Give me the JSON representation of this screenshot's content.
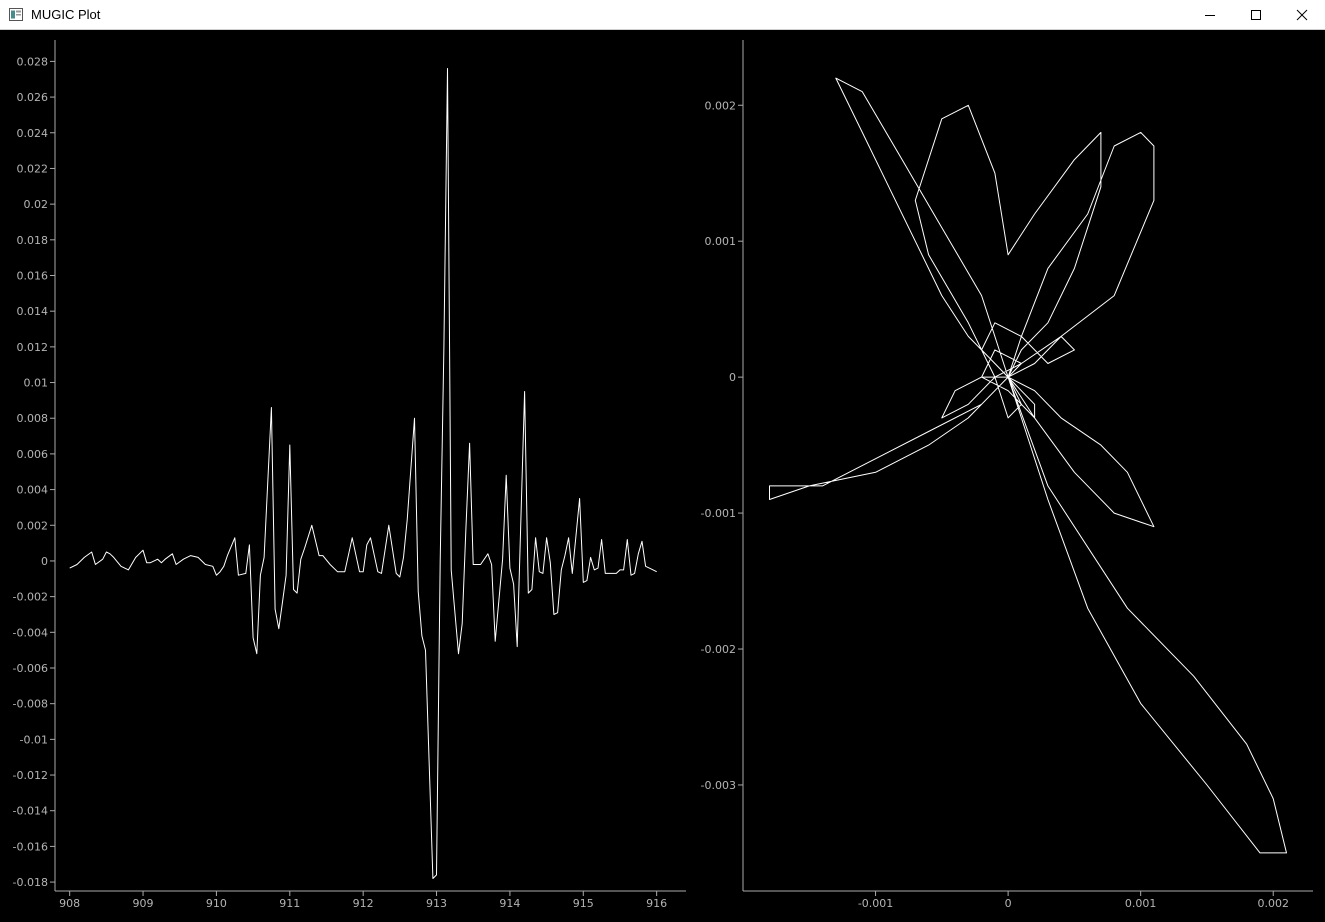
{
  "window": {
    "title": "MUGIC Plot",
    "icon": "app-window-icon",
    "controls": [
      "minimize-icon",
      "maximize-icon",
      "close-icon"
    ]
  },
  "colors": {
    "background": "#000000",
    "axis": "#aaaaaa",
    "trace": "#ffffff",
    "titlebar": "#ffffff"
  },
  "chart_data": [
    {
      "type": "line",
      "title": "",
      "xlabel": "",
      "ylabel": "",
      "xlim": [
        907.8,
        916.4
      ],
      "ylim": [
        -0.0185,
        0.0292
      ],
      "xticks": [
        "908",
        "909",
        "910",
        "911",
        "912",
        "913",
        "914",
        "915",
        "916"
      ],
      "yticks": [
        "0.028",
        "0.026",
        "0.024",
        "0.022",
        "0.02",
        "0.018",
        "0.016",
        "0.014",
        "0.012",
        "0.01",
        "0.008",
        "0.006",
        "0.004",
        "0.002",
        "0",
        "-0.002",
        "-0.004",
        "-0.006",
        "-0.008",
        "-0.01",
        "-0.012",
        "-0.014",
        "-0.016",
        "-0.018"
      ],
      "grid": false,
      "series": [
        {
          "x": [
            908.0,
            908.1,
            908.2,
            908.3,
            908.35,
            908.45,
            908.5,
            908.55,
            908.6,
            908.7,
            908.8,
            908.9,
            909.0,
            909.05,
            909.1,
            909.2,
            909.25,
            909.3,
            909.4,
            909.45,
            909.55,
            909.65,
            909.75,
            909.85,
            909.95,
            910.0,
            910.05,
            910.1,
            910.15,
            910.25,
            910.3,
            910.4,
            910.45,
            910.5,
            910.55,
            910.6,
            910.65,
            910.75,
            910.8,
            910.85,
            910.9,
            910.95,
            911.0,
            911.05,
            911.1,
            911.15,
            911.2,
            911.3,
            911.4,
            911.45,
            911.55,
            911.65,
            911.75,
            911.85,
            911.95,
            912.0,
            912.05,
            912.1,
            912.2,
            912.25,
            912.35,
            912.45,
            912.5,
            912.55,
            912.6,
            912.7,
            912.75,
            912.8,
            912.85,
            912.95,
            913.0,
            913.05,
            913.1,
            913.15,
            913.2,
            913.3,
            913.35,
            913.4,
            913.45,
            913.5,
            913.6,
            913.7,
            913.75,
            913.8,
            913.9,
            913.95,
            914.0,
            914.05,
            914.1,
            914.2,
            914.25,
            914.3,
            914.35,
            914.4,
            914.45,
            914.5,
            914.55,
            914.6,
            914.65,
            914.7,
            914.75,
            914.8,
            914.85,
            914.95,
            915.0,
            915.05,
            915.1,
            915.15,
            915.2,
            915.25,
            915.3,
            915.4,
            915.45,
            915.5,
            915.55,
            915.6,
            915.65,
            915.7,
            915.75,
            915.8,
            915.85,
            915.9,
            916.0
          ],
          "y": [
            -0.0004,
            -0.0002,
            0.0002,
            0.0005,
            -0.0002,
            0.0001,
            0.0005,
            0.0004,
            0.0002,
            -0.0003,
            -0.0005,
            0.0002,
            0.0006,
            -0.0001,
            -0.0001,
            0.0001,
            -0.0001,
            0.0001,
            0.0004,
            -0.0002,
            0.0001,
            0.0003,
            0.0002,
            -0.0002,
            -0.0003,
            -0.0008,
            -0.0006,
            -0.0003,
            0.0003,
            0.0013,
            -0.0008,
            -0.0007,
            0.0009,
            -0.0043,
            -0.0052,
            -0.0008,
            0.0002,
            0.0086,
            -0.0027,
            -0.0038,
            -0.0023,
            -0.0008,
            0.0065,
            -0.0016,
            -0.0018,
            0.0001,
            0.0007,
            0.002,
            0.0003,
            0.0003,
            -0.0002,
            -0.0006,
            -0.0006,
            0.0013,
            -0.0006,
            -0.0006,
            0.0009,
            0.0013,
            -0.0006,
            -0.0007,
            0.002,
            -0.0007,
            -0.0009,
            0.0002,
            0.0023,
            0.008,
            -0.0017,
            -0.0042,
            -0.005,
            -0.0178,
            -0.0176,
            0.0,
            0.012,
            0.0276,
            -0.0005,
            -0.0052,
            -0.0035,
            0.0018,
            0.0066,
            -0.0002,
            -0.0002,
            0.0004,
            -0.0002,
            -0.0045,
            0.0001,
            0.0048,
            -0.0004,
            -0.0013,
            -0.0048,
            0.0095,
            -0.0018,
            -0.0016,
            0.0013,
            -0.0006,
            -0.0007,
            0.0013,
            -0.0001,
            -0.003,
            -0.0029,
            -0.0005,
            0.0003,
            0.0013,
            -0.0007,
            0.0035,
            -0.0012,
            -0.0011,
            0.0002,
            -0.0005,
            -0.0004,
            0.0012,
            -0.0007,
            -0.0007,
            -0.0007,
            -0.0005,
            -0.0005,
            0.0012,
            -0.0008,
            -0.0007,
            0.0004,
            0.0011,
            -0.0003,
            -0.0004,
            -0.0006
          ],
          "color": "#ffffff"
        }
      ]
    },
    {
      "type": "line",
      "title": "",
      "xlabel": "",
      "ylabel": "",
      "xlim": [
        -0.002,
        0.0023
      ],
      "ylim": [
        -0.00378,
        0.00248
      ],
      "xticks": [
        "-0.001",
        "0",
        "0.001",
        "0.002"
      ],
      "yticks": [
        "0.002",
        "0.001",
        "0",
        "-0.001",
        "-0.002",
        "-0.003"
      ],
      "grid": false,
      "series": [
        {
          "x": [
            0,
            -0.0002,
            -0.0005,
            -0.0008,
            -0.0011,
            -0.0013,
            -0.0011,
            -0.0009,
            -0.0007,
            -0.0005,
            -0.0003,
            -0.0001,
            0.0,
            0.0001,
            0.0,
            -0.0001,
            -0.0003,
            -0.0006,
            -0.0007,
            -0.0005,
            -0.0003,
            -0.0001,
            0.0,
            0.0002,
            0.0005,
            0.0007,
            0.0007,
            0.0005,
            0.0003,
            0.0001,
            0.0,
            0.0001,
            0.0003,
            0.0006,
            0.0008,
            0.001,
            0.0011,
            0.0011,
            0.0008,
            0.0004,
            0.0001,
            -0.0001,
            -0.0003,
            -0.0005,
            -0.0004,
            -0.0002,
            0.0,
            -0.0002,
            -0.0006,
            -0.001,
            -0.0014,
            -0.0018,
            -0.0018,
            -0.0015,
            -0.001,
            -0.0006,
            -0.0003,
            -0.0001,
            0.0,
            0.0002,
            0.0004,
            0.0007,
            0.0009,
            0.0011,
            0.0008,
            0.0005,
            0.0002,
            0.0,
            0.0003,
            0.0009,
            0.0014,
            0.0018,
            0.002,
            0.0021,
            0.0019,
            0.0015,
            0.001,
            0.0006,
            0.0003,
            0.0001,
            0.0,
            -0.0002,
            -0.0001,
            0.0001,
            0.0003,
            0.0005,
            0.0004,
            0.0002,
            0.0,
            0.0002,
            0.0002,
            0.0,
            -0.0002,
            -0.0001,
            0.0001,
            0.0,
            0.0002,
            0.0
          ],
          "y": [
            0,
            0.0006,
            0.0011,
            0.0016,
            0.0021,
            0.0022,
            0.0018,
            0.0014,
            0.001,
            0.0006,
            0.0003,
            0.0001,
            0.0,
            -0.0002,
            -0.0003,
            0.0,
            0.0004,
            0.0009,
            0.0013,
            0.0019,
            0.002,
            0.0015,
            0.0009,
            0.0012,
            0.0016,
            0.0018,
            0.0014,
            0.0008,
            0.0004,
            0.0002,
            0.0,
            0.0003,
            0.0008,
            0.0012,
            0.0017,
            0.0018,
            0.0017,
            0.0013,
            0.0006,
            0.0003,
            0.0001,
            0.0,
            -0.0002,
            -0.0003,
            -0.0001,
            0.0,
            0.0,
            -0.0002,
            -0.0004,
            -0.0006,
            -0.0008,
            -0.0008,
            -0.0009,
            -0.0008,
            -0.0007,
            -0.0005,
            -0.0003,
            -0.0001,
            0.0,
            -0.0001,
            -0.0003,
            -0.0005,
            -0.0007,
            -0.0011,
            -0.001,
            -0.0007,
            -0.0003,
            0.0,
            -0.0008,
            -0.0017,
            -0.0022,
            -0.0027,
            -0.0031,
            -0.0035,
            -0.0035,
            -0.003,
            -0.0024,
            -0.0017,
            -0.0009,
            -0.0003,
            0.0,
            0.0002,
            0.0004,
            0.0003,
            0.0001,
            0.0002,
            0.0003,
            0.0001,
            0.0,
            -0.0002,
            -0.0003,
            -0.0001,
            0.0,
            0.0002,
            0.0001,
            0.0,
            -0.0001,
            0.0
          ],
          "color": "#ffffff"
        }
      ]
    }
  ]
}
